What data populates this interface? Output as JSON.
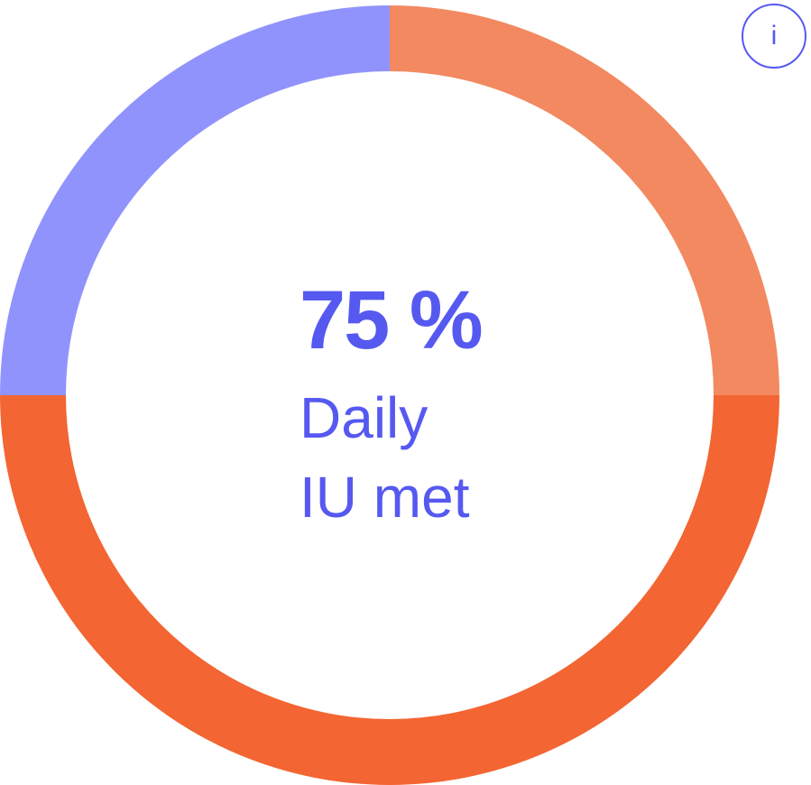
{
  "progress": {
    "value_label": "75 %",
    "caption_line1": "Daily",
    "caption_line2": "IU met",
    "fraction": 0.75
  },
  "ring": {
    "segments": [
      {
        "name": "top-right",
        "color": "#f28961"
      },
      {
        "name": "bottom",
        "color": "#f36532"
      },
      {
        "name": "top-left",
        "color": "#9193fc"
      }
    ]
  },
  "info_button": {
    "label": "i",
    "icon": "info-icon"
  },
  "colors": {
    "accent": "#5659f0",
    "ring_top_right": "#f28961",
    "ring_bottom": "#f36532",
    "ring_top_left": "#9193fc"
  }
}
